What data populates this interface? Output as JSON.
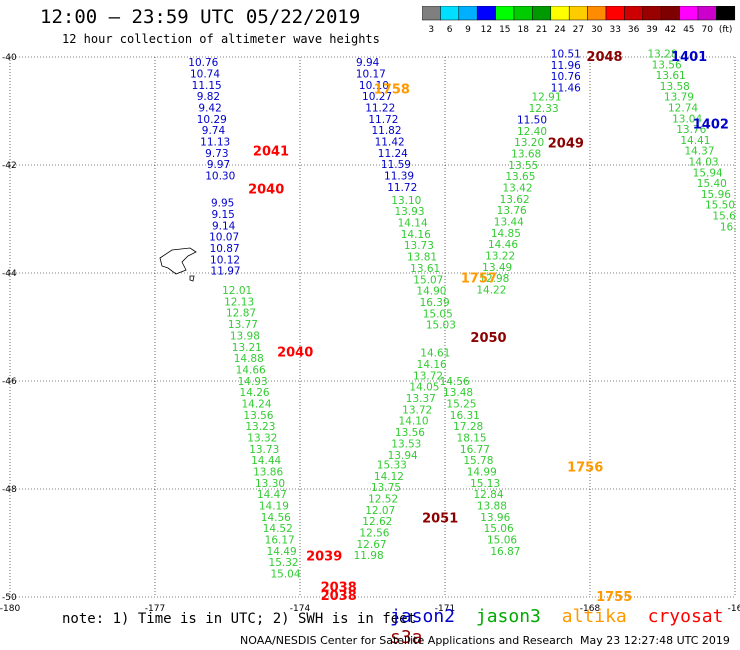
{
  "header": {
    "title": "12:00 — 23:59 UTC 05/22/2019",
    "subtitle": "12 hour collection of altimeter wave heights"
  },
  "colorbar": {
    "labels": [
      "3",
      "6",
      "9",
      "12",
      "15",
      "18",
      "21",
      "24",
      "27",
      "30",
      "33",
      "36",
      "39",
      "42",
      "45",
      "70",
      "(ft)"
    ],
    "colors": [
      "#7f7f7f",
      "#00dfff",
      "#00afff",
      "#0000ff",
      "#00ff00",
      "#00cc00",
      "#009a00",
      "#ffff00",
      "#ffcc00",
      "#ff8c00",
      "#ff0000",
      "#cc0000",
      "#990000",
      "#7f0000",
      "#ff00ff",
      "#cc00cc",
      "#000000"
    ]
  },
  "footer": {
    "note": "note: 1) Time is in UTC; 2) SWH is in feet",
    "credit": "NOAA/NESDIS Center for Satellite Applications and Research",
    "timestamp": "May 23 12:27:48 UTC 2019"
  },
  "legend": [
    {
      "name": "jason2",
      "color": "#0000cc"
    },
    {
      "name": "jason3",
      "color": "#00aa00"
    },
    {
      "name": "altika",
      "color": "#ff9900"
    },
    {
      "name": "cryosat",
      "color": "#ff0000"
    },
    {
      "name": "s3a",
      "color": "#990000"
    }
  ],
  "chart_data": {
    "type": "scatter",
    "title": "12:00 — 23:59 UTC 05/22/2019",
    "subtitle": "12 hour collection of altimeter wave heights",
    "xlim": [
      -180,
      -165
    ],
    "ylim": [
      -50,
      -40
    ],
    "x_ticks": [
      "-180",
      "-177",
      "-174",
      "-171",
      "-168",
      "-16"
    ],
    "y_ticks": [
      "-40",
      "-42",
      "-44",
      "-46",
      "-48",
      "-50"
    ],
    "colors": {
      "jason2": "#0000cc",
      "jason3": "#33cc33",
      "altika": "#ff9900",
      "cryosat": "#ff0000",
      "s3a": "#8b0000"
    },
    "tracks": [
      {
        "sat": "jason2",
        "x0": -176.0,
        "y0": -40.17,
        "dx": 0.035,
        "dy": 0.21,
        "values": [
          "10.76",
          "10.74",
          "11.15",
          "9.82",
          "9.42",
          "10.29",
          "9.74",
          "11.13",
          "9.73",
          "9.97",
          "10.30"
        ]
      },
      {
        "sat": "jason2",
        "x0": -175.6,
        "y0": -42.77,
        "dx": 0.01,
        "dy": 0.21,
        "values": [
          "9.95",
          "9.15",
          "9.14",
          "10.07",
          "10.87",
          "10.12",
          "11.97"
        ]
      },
      {
        "sat": "jason3",
        "x0": -175.3,
        "y0": -44.39,
        "dx": 0.04,
        "dy": 0.21,
        "values": [
          "12.01",
          "12.13",
          "12.87",
          "13.77",
          "13.98",
          "13.21",
          "14.88",
          "14.66",
          "14.93",
          "14.26",
          "14.24",
          "13.56",
          "13.23",
          "13.32",
          "13.73",
          "14.44",
          "13.86",
          "13.30",
          "14.47",
          "14.19",
          "14.56",
          "14.52",
          "16.17",
          "14.49",
          "15.32",
          "15.04"
        ]
      },
      {
        "sat": "jason2",
        "x0": -172.6,
        "y0": -40.17,
        "dx": 0.065,
        "dy": 0.21,
        "values": [
          "9.94",
          "10.17",
          "10.10",
          "10.27",
          "11.22",
          "11.72",
          "11.82",
          "11.42",
          "11.24",
          "11.59",
          "11.39",
          "11.72"
        ]
      },
      {
        "sat": "jason3",
        "x0": -171.8,
        "y0": -42.72,
        "dx": 0.065,
        "dy": 0.21,
        "values": [
          "13.10",
          "13.93",
          "14.14",
          "14.16",
          "13.73",
          "13.81",
          "13.61",
          "15.07",
          "14.90",
          "16.39",
          "15.05",
          "15.03"
        ]
      },
      {
        "sat": "jason3",
        "x0": -171.2,
        "y0": -45.55,
        "dx": -0.075,
        "dy": 0.21,
        "values": [
          "14.61",
          "14.16",
          "13.72",
          "14.05",
          "13.37",
          "13.72",
          "14.10",
          "13.56",
          "13.53",
          "13.94"
        ]
      },
      {
        "sat": "jason3",
        "x0": -172.1,
        "y0": -47.62,
        "dx": -0.06,
        "dy": 0.21,
        "values": [
          "15.33",
          "14.12",
          "13.75",
          "12.52",
          "12.07",
          "12.62",
          "12.56",
          "12.67",
          "11.98"
        ]
      },
      {
        "sat": "jason2",
        "x0": -168.5,
        "y0": -40.01,
        "dx": 0.0,
        "dy": 0.21,
        "values": [
          "10.51",
          "11.96",
          "10.76",
          "11.46"
        ]
      },
      {
        "sat": "jason3",
        "x0": -168.9,
        "y0": -40.81,
        "dx": -0.06,
        "dy": 0.21,
        "values": [
          "12.91",
          "12.33"
        ]
      },
      {
        "sat": "jason2",
        "x0": -169.2,
        "y0": -41.23,
        "dx": 0.0,
        "dy": 0.21,
        "values": [
          "11.50"
        ]
      },
      {
        "sat": "jason3",
        "x0": -169.2,
        "y0": -41.44,
        "dx": -0.06,
        "dy": 0.21,
        "values": [
          "12.40",
          "13.20",
          "13.68",
          "13.55",
          "13.65",
          "13.42",
          "13.62",
          "13.76",
          "13.44",
          "14.85",
          "14.46",
          "13.22",
          "13.49",
          "12.98",
          "14.22"
        ]
      },
      {
        "sat": "jason3",
        "x0": -170.8,
        "y0": -46.07,
        "dx": 0.07,
        "dy": 0.21,
        "values": [
          "14.56",
          "13.48",
          "15.25",
          "16.31",
          "17.28",
          "18.15",
          "16.77",
          "15.78",
          "14.99",
          "15.13",
          "12.84",
          "13.88",
          "13.96",
          "15.06",
          "15.06",
          "16.87"
        ]
      },
      {
        "sat": "jason3",
        "x0": -166.5,
        "y0": -40.01,
        "dx": 0.085,
        "dy": 0.2,
        "values": [
          "13.28",
          "13.56",
          "13.61",
          "13.58",
          "13.79",
          "12.74",
          "13.04",
          "13.76",
          "14.41",
          "14.37",
          "14.03",
          "15.94",
          "15.40",
          "15.96",
          "15.50",
          "15.6",
          "16."
        ]
      }
    ],
    "annotations": [
      {
        "text": "2041",
        "sat": "cryosat",
        "x": -174.6,
        "y": -41.75
      },
      {
        "text": "2040",
        "sat": "cryosat",
        "x": -174.7,
        "y": -42.45
      },
      {
        "text": "2040",
        "sat": "cryosat",
        "x": -174.1,
        "y": -45.47
      },
      {
        "text": "2039",
        "sat": "cryosat",
        "x": -173.5,
        "y": -49.25
      },
      {
        "text": "2038",
        "sat": "cryosat",
        "x": -173.2,
        "y": -49.82
      },
      {
        "text": "2038",
        "sat": "cryosat",
        "x": -173.2,
        "y": -49.98
      },
      {
        "text": "1758",
        "sat": "altika",
        "x": -172.1,
        "y": -40.6
      },
      {
        "text": "1757",
        "sat": "altika",
        "x": -170.3,
        "y": -44.1
      },
      {
        "text": "1756",
        "sat": "altika",
        "x": -168.1,
        "y": -47.6
      },
      {
        "text": "1755",
        "sat": "altika",
        "x": -167.5,
        "y": -50.0
      },
      {
        "text": "2048",
        "sat": "s3a",
        "x": -167.7,
        "y": -40.0
      },
      {
        "text": "2049",
        "sat": "s3a",
        "x": -168.5,
        "y": -41.6
      },
      {
        "text": "2050",
        "sat": "s3a",
        "x": -170.1,
        "y": -45.2
      },
      {
        "text": "2051",
        "sat": "s3a",
        "x": -171.1,
        "y": -48.55
      },
      {
        "text": "1401",
        "sat": "jason2",
        "x": -165.95,
        "y": -40.0
      },
      {
        "text": "1402",
        "sat": "jason2",
        "x": -165.5,
        "y": -41.25
      }
    ]
  }
}
